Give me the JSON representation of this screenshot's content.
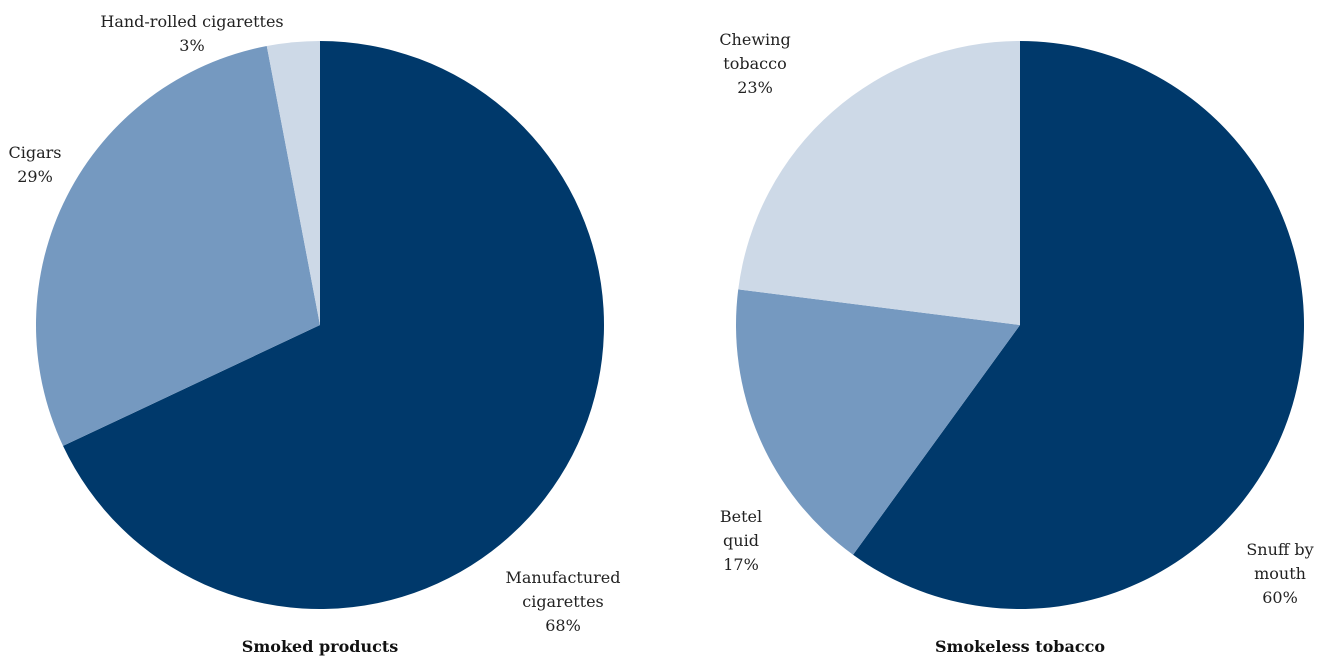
{
  "chart_data": [
    {
      "type": "pie",
      "title": "Smoked products",
      "slices": [
        {
          "label_lines": [
            "Manufactured",
            "cigarettes"
          ],
          "value_label": "68%",
          "value": 68,
          "color": "#00396b"
        },
        {
          "label_lines": [
            "Cigars"
          ],
          "value_label": "29%",
          "value": 29,
          "color": "#7599c0"
        },
        {
          "label_lines": [
            "Hand-rolled cigarettes"
          ],
          "value_label": "3%",
          "value": 3,
          "color": "#cdd9e7"
        }
      ]
    },
    {
      "type": "pie",
      "title": "Smokeless tobacco",
      "slices": [
        {
          "label_lines": [
            "Snuff by",
            "mouth"
          ],
          "value_label": "60%",
          "value": 60,
          "color": "#00396b"
        },
        {
          "label_lines": [
            "Betel",
            "quid"
          ],
          "value_label": "17%",
          "value": 17,
          "color": "#7599c0"
        },
        {
          "label_lines": [
            "Chewing",
            "tobacco"
          ],
          "value_label": "23%",
          "value": 23,
          "color": "#cdd9e7"
        }
      ]
    }
  ]
}
